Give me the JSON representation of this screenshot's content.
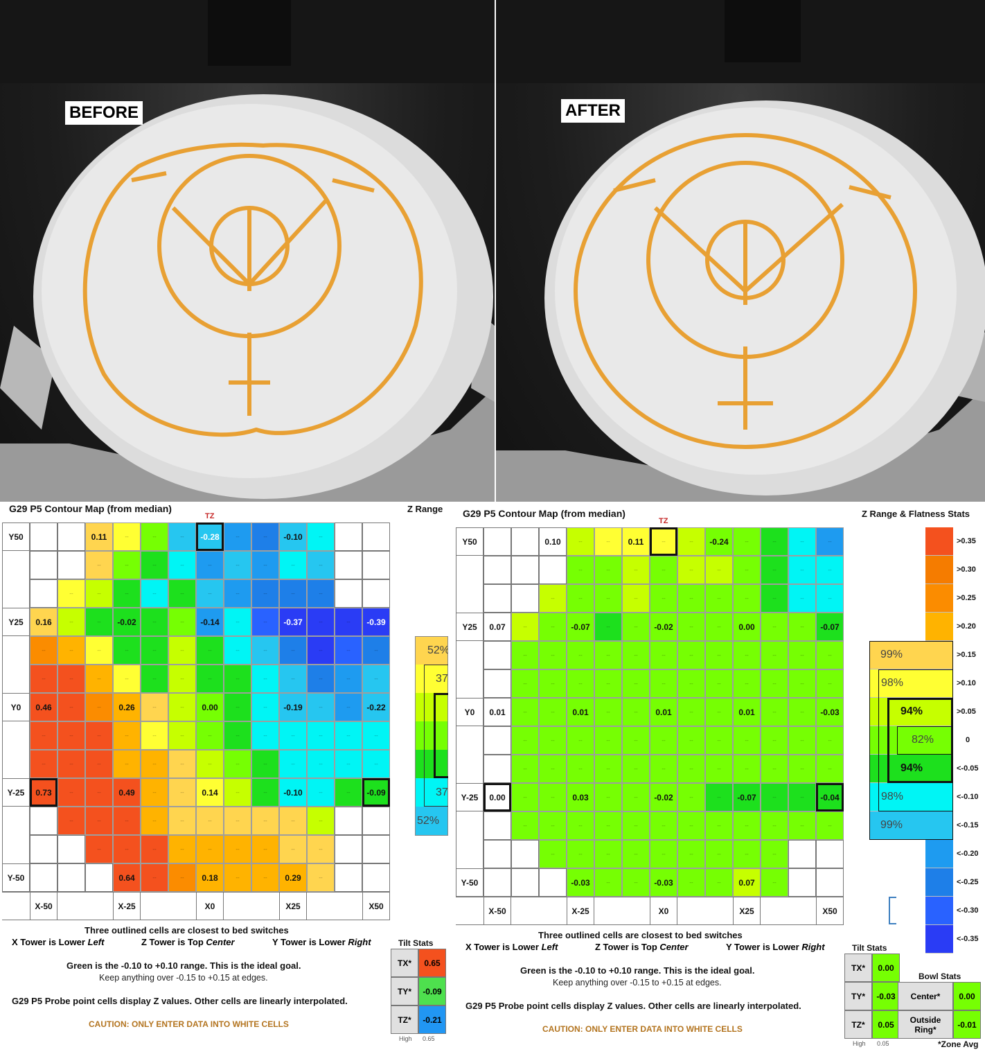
{
  "photos": {
    "before_label": "BEFORE",
    "after_label": "AFTER"
  },
  "before": {
    "title": "G29 P5 Contour Map (from median)",
    "zrange_title": "Z Range",
    "tower_labels": {
      "tz": "TZ",
      "tx": "TX",
      "ty": "TY"
    },
    "row_labels": [
      "Y50",
      "Y25",
      "Y0",
      "Y-25",
      "Y-50"
    ],
    "col_labels": [
      "X-50",
      "X-25",
      "X0",
      "X25",
      "X50"
    ],
    "probe_values": {
      "r0c3": "0.11",
      "r0c6": "-0.28",
      "r0c9": "-0.10",
      "r3c1": "0.16",
      "r3c4": "-0.02",
      "r3c7": "-0.14",
      "r3c10": "-0.37",
      "r3c12": "-0.39",
      "r6c1": "0.46",
      "r6c4": "0.26",
      "r6c7": "0.00",
      "r6c10": "-0.19",
      "r6c12": "-0.22",
      "r9c1": "0.73",
      "r9c4": "0.49",
      "r9c7": "0.14",
      "r9c10": "-0.10",
      "r9c12": "-0.09",
      "r12c4": "0.64",
      "r12c7": "0.18",
      "r12c9": "0.29"
    },
    "legend_partial": [
      "52%",
      "37",
      "37",
      "52%"
    ],
    "notes": {
      "line1": "Three outlined cells are closest to bed switches",
      "x_tower_a": "X Tower is Lower ",
      "x_tower_b": "Left",
      "z_tower_a": "Z Tower is Top ",
      "z_tower_b": "Center",
      "y_tower_a": "Y Tower is Lower ",
      "y_tower_b": "Right",
      "green_line": "Green is the -0.10 to +0.10 range.  This is the ideal goal.",
      "edge_line": "Keep anything over -0.15 to +0.15 at edges.",
      "probe_line": "G29 P5 Probe point cells display Z values.  Other cells are linearly interpolated.",
      "caution": "CAUTION: ONLY ENTER DATA INTO WHITE CELLS"
    },
    "tilt": {
      "title": "Tilt Stats",
      "rows": [
        {
          "key": "TX*",
          "value": "0.65",
          "color": "#f4511e"
        },
        {
          "key": "TY*",
          "value": "-0.09",
          "color": "#4ee04e"
        },
        {
          "key": "TZ*",
          "value": "-0.21",
          "color": "#2196f3"
        }
      ],
      "high_label": "High",
      "high_value": "0.65"
    }
  },
  "after": {
    "title": "G29 P5 Contour Map (from median)",
    "zrange_title": "Z Range & Flatness Stats",
    "tower_labels": {
      "tz": "TZ",
      "tx": "TX",
      "ty": "TY"
    },
    "row_labels": [
      "Y50",
      "Y25",
      "Y0",
      "Y-25",
      "Y-50"
    ],
    "col_labels": [
      "X-50",
      "X-25",
      "X0",
      "X25",
      "X50"
    ],
    "probe_values": {
      "r0c3": "0.10",
      "r0c6": "0.11",
      "r0c9": "-0.24",
      "r3c1": "0.07",
      "r3c4": "-0.07",
      "r3c7": "-0.02",
      "r3c10": "0.00",
      "r3c13": "-0.07",
      "r6c1": "0.01",
      "r6c4": "0.01",
      "r6c7": "0.01",
      "r6c10": "0.01",
      "r6c13": "-0.03",
      "r9c1": "0.00",
      "r9c4": "0.03",
      "r9c7": "-0.02",
      "r9c10": "-0.07",
      "r9c13": "-0.04",
      "r12c4": "-0.03",
      "r12c7": "-0.03",
      "r12c10": "0.07"
    },
    "legend": {
      "labels": [
        ">0.35",
        ">0.30",
        ">0.25",
        ">0.20",
        ">0.15",
        ">0.10",
        ">0.05",
        "0",
        "<-0.05",
        "<-0.10",
        "<-0.15",
        "<-0.20",
        "<-0.25",
        "<-0.30",
        "<-0.35"
      ],
      "colors": [
        "#f4511e",
        "#f57c00",
        "#fb8c00",
        "#ffb300",
        "#ffd54f",
        "#ffff33",
        "#c6ff00",
        "#76ff03",
        "#1de01d",
        "#00f5f5",
        "#26c6f0",
        "#1e9bf0",
        "#1e7fe8",
        "#2962ff",
        "#2a3cf5"
      ],
      "flatness": [
        "99%",
        "98%",
        "94%",
        "82%",
        "94%",
        "98%",
        "99%"
      ]
    },
    "notes": {
      "line1": "Three outlined cells are closest to bed switches",
      "x_tower_a": "X Tower is Lower ",
      "x_tower_b": "Left",
      "z_tower_a": "Z Tower is Top ",
      "z_tower_b": "Center",
      "y_tower_a": "Y Tower is Lower ",
      "y_tower_b": "Right",
      "green_line": "Green is the -0.10 to +0.10 range.  This is the ideal goal.",
      "edge_line": "Keep anything over -0.15 to +0.15 at edges.",
      "probe_line": "G29 P5 Probe point cells display Z values.  Other cells are linearly interpolated.",
      "caution": "CAUTION: ONLY ENTER DATA INTO WHITE CELLS"
    },
    "tilt": {
      "title": "Tilt Stats",
      "rows": [
        {
          "key": "TX*",
          "value": "0.00",
          "color": "#76ff03"
        },
        {
          "key": "TY*",
          "value": "-0.03",
          "color": "#76ff03"
        },
        {
          "key": "TZ*",
          "value": "0.05",
          "color": "#76ff03"
        }
      ],
      "high_label": "High",
      "high_value": "0.05"
    },
    "bowl": {
      "title": "Bowl Stats",
      "rows": [
        {
          "key": "Center*",
          "value": "0.00",
          "color": "#76ff03"
        },
        {
          "key": "Outside Ring*",
          "value": "-0.01",
          "color": "#76ff03"
        }
      ],
      "footnote": "*Zone Avg"
    }
  }
}
